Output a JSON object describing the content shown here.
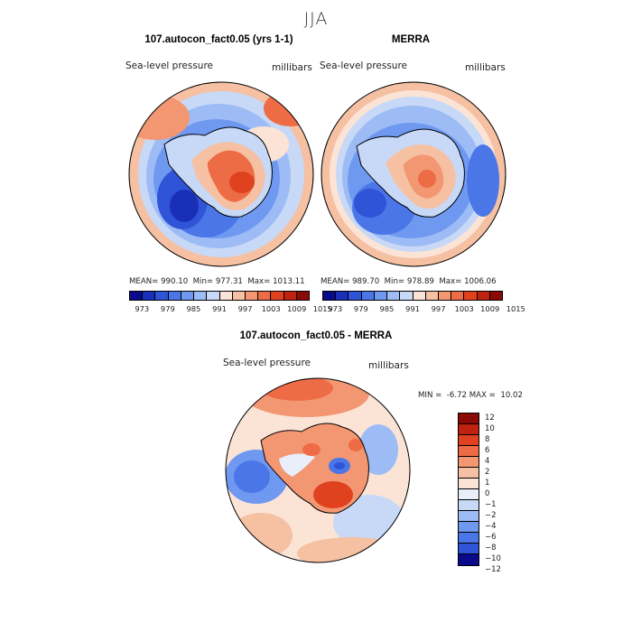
{
  "season_title": "JJA",
  "panels": [
    {
      "title": "107.autocon_fact0.05 (yrs 1-1)",
      "field_label": "Sea-level pressure",
      "units_label": "millibars",
      "stats": {
        "mean_label": "MEAN=",
        "mean": "990.10",
        "min_label": "Min=",
        "min": "977.31",
        "max_label": "Max=",
        "max": "1013.11"
      }
    },
    {
      "title": "MERRA",
      "field_label": "Sea-level pressure",
      "units_label": "millibars",
      "stats": {
        "mean_label": "MEAN=",
        "mean": "989.70",
        "min_label": "Min=",
        "min": "978.89",
        "max_label": "Max=",
        "max": "1006.06"
      }
    }
  ],
  "diff_panel": {
    "title": "107.autocon_fact0.05 - MERRA",
    "field_label": "Sea-level pressure",
    "units_label": "millibars",
    "min_label": "MIN =",
    "min": "-6.72",
    "max_label": "MAX =",
    "max": "10.02"
  },
  "chart_data": [
    {
      "type": "filled-contour-map",
      "projection": "south polar stereographic",
      "title": "107.autocon_fact0.05 (yrs 1-1)",
      "variable": "Sea-level pressure",
      "units": "millibars",
      "mean": 990.1,
      "min": 977.31,
      "max": 1013.11,
      "colorbar_ticks": [
        "973",
        "979",
        "985",
        "991",
        "997",
        "1003",
        "1009",
        "1015"
      ],
      "colorbar_levels": 14
    },
    {
      "type": "filled-contour-map",
      "projection": "south polar stereographic",
      "title": "MERRA",
      "variable": "Sea-level pressure",
      "units": "millibars",
      "mean": 989.7,
      "min": 978.89,
      "max": 1006.06,
      "colorbar_ticks": [
        "973",
        "979",
        "985",
        "991",
        "997",
        "1003",
        "1009",
        "1015"
      ],
      "colorbar_levels": 14
    },
    {
      "type": "filled-contour-map",
      "projection": "south polar stereographic",
      "title": "107.autocon_fact0.05 - MERRA",
      "variable": "Sea-level pressure",
      "units": "millibars",
      "min": -6.72,
      "max": 10.02,
      "colorbar_ticks": [
        "12",
        "10",
        "8",
        "6",
        "4",
        "2",
        "1",
        "0",
        "−1",
        "−2",
        "−4",
        "−6",
        "−8",
        "−10",
        "−12"
      ],
      "colorbar_levels": 14
    }
  ],
  "colors": {
    "scale": [
      "#0a0a8c",
      "#1a2fb8",
      "#2f54d8",
      "#4a76e8",
      "#6f98f0",
      "#9dbcf5",
      "#c7d9f7",
      "#fbe4d6",
      "#f6c0a3",
      "#f39773",
      "#ee6c45",
      "#e0421f",
      "#c02210",
      "#8c0a05"
    ],
    "diff_scale": [
      "#8c0a05",
      "#c02210",
      "#e0421f",
      "#ee6c45",
      "#f39773",
      "#f6c0a3",
      "#fbe4d6",
      "#e8eefa",
      "#c7d9f7",
      "#9dbcf5",
      "#6f98f0",
      "#4a76e8",
      "#2f54d8",
      "#0a0a8c"
    ]
  }
}
